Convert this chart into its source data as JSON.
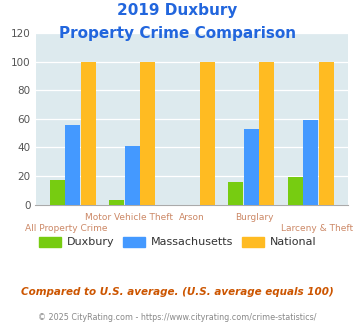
{
  "title_line1": "2019 Duxbury",
  "title_line2": "Property Crime Comparison",
  "categories": [
    "All Property Crime",
    "Motor Vehicle Theft",
    "Arson",
    "Burglary",
    "Larceny & Theft"
  ],
  "duxbury": [
    17,
    3,
    0,
    16,
    19
  ],
  "massachusetts": [
    56,
    41,
    0,
    53,
    59
  ],
  "national": [
    100,
    100,
    100,
    100,
    100
  ],
  "color_duxbury": "#77cc11",
  "color_massachusetts": "#4499ff",
  "color_national": "#ffbb22",
  "ylim": [
    0,
    120
  ],
  "yticks": [
    0,
    20,
    40,
    60,
    80,
    100,
    120
  ],
  "bg_color": "#ddeaee",
  "title_color": "#2266dd",
  "footnote1": "Compared to U.S. average. (U.S. average equals 100)",
  "footnote2": "© 2025 CityRating.com - https://www.cityrating.com/crime-statistics/",
  "footnote1_color": "#cc5500",
  "footnote2_color": "#888888",
  "label_top": [
    "",
    "Motor Vehicle Theft",
    "Arson",
    "Burglary",
    ""
  ],
  "label_bot": [
    "All Property Crime",
    "",
    "",
    "",
    "Larceny & Theft"
  ],
  "label_color": "#cc8866"
}
